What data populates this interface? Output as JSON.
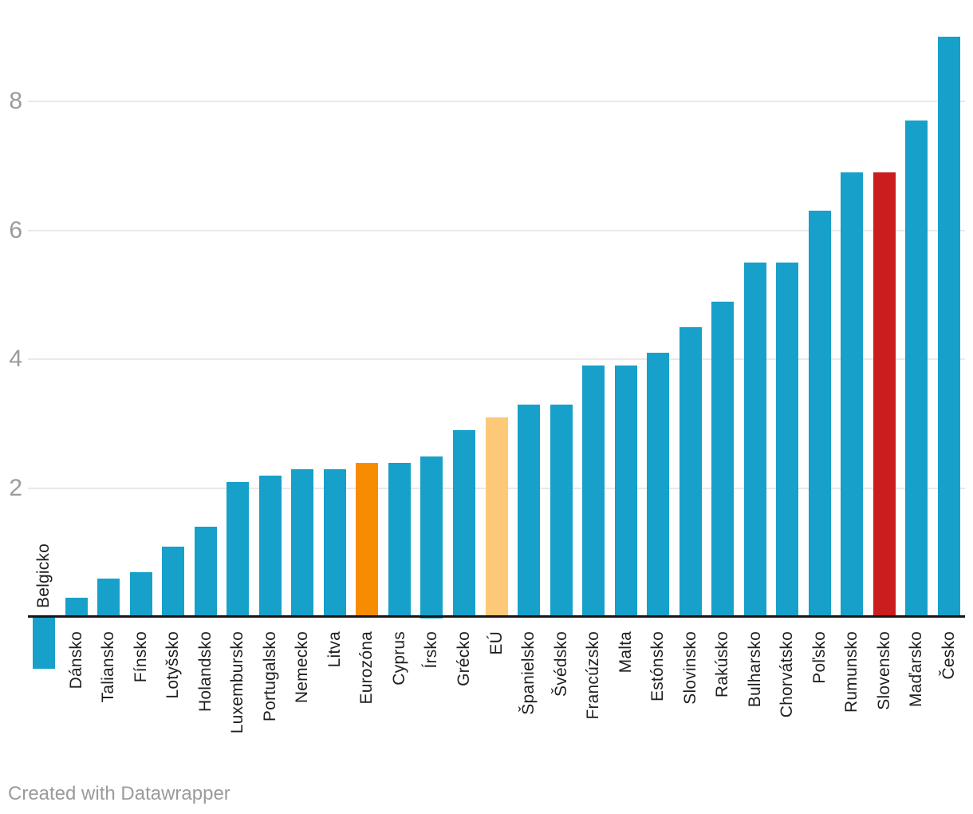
{
  "chart_data": {
    "type": "bar",
    "title": "",
    "xlabel": "",
    "ylabel": "",
    "categories": [
      "Belgicko",
      "Dánsko",
      "Taliansko",
      "Fínsko",
      "Lotyšsko",
      "Holandsko",
      "Luxembursko",
      "Portugalsko",
      "Nemecko",
      "Litva",
      "Eurozóna",
      "Cyprus",
      "Írsko",
      "Grécko",
      "EÚ",
      "Španielsko",
      "Švédsko",
      "Francúzsko",
      "Malta",
      "Estónsko",
      "Slovinsko",
      "Rakúsko",
      "Bulharsko",
      "Chorvátsko",
      "Poľsko",
      "Rumunsko",
      "Slovensko",
      "Maďarsko",
      "Česko"
    ],
    "values": [
      -0.8,
      0.3,
      0.6,
      0.7,
      1.1,
      1.4,
      2.1,
      2.2,
      2.3,
      2.3,
      2.4,
      2.4,
      2.5,
      2.9,
      3.1,
      3.3,
      3.3,
      3.9,
      3.9,
      4.1,
      4.5,
      4.9,
      5.5,
      5.5,
      6.3,
      6.9,
      6.9,
      7.7,
      9.0
    ],
    "y_ticks": [
      2,
      4,
      6,
      8
    ],
    "ylim": [
      -1,
      9.3
    ],
    "grid": true,
    "legend": "none",
    "colors": {
      "default": "#17A0CA",
      "highlights": {
        "Eurozóna": "#F88C00",
        "EÚ": "#FDC878",
        "Slovensko": "#CA1D1D"
      },
      "gridline": "#E9E9E9",
      "axis": "#161616",
      "tick_text": "#9B9B9B",
      "label_text": "#1F1F1F"
    }
  },
  "footer": {
    "credit": "Created with Datawrapper"
  }
}
